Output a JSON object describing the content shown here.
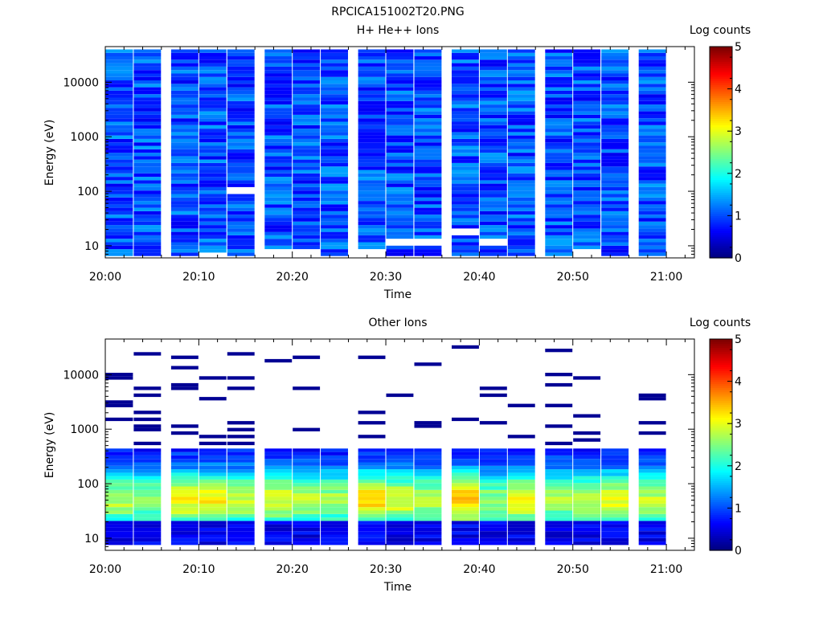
{
  "figure_title": "RPCICA151002T20.PNG",
  "chart_data": [
    {
      "type": "heatmap",
      "title": "H+ He++ Ions",
      "xlabel": "Time",
      "ylabel": "Energy (eV)",
      "x_ticks": [
        "20:00",
        "20:10",
        "20:20",
        "20:30",
        "20:40",
        "20:50",
        "21:00"
      ],
      "x_range": [
        "20:00",
        "21:03"
      ],
      "y_scale": "log",
      "y_ticks": [
        10,
        100,
        1000,
        10000
      ],
      "y_tick_labels": [
        "10",
        "100",
        "1000",
        "10000"
      ],
      "y_range": [
        6,
        45000
      ],
      "z_label": "Log counts",
      "z_ticks": [
        "0",
        "1",
        "2",
        "3",
        "4",
        "5"
      ],
      "z_range": [
        0,
        5
      ],
      "colorscale": "rainbow (dark blue to dark red)",
      "time_bins": [
        "20:00",
        "20:03",
        "20:07",
        "20:10",
        "20:13",
        "20:17",
        "20:20",
        "20:23",
        "20:27",
        "20:30",
        "20:33",
        "20:37",
        "20:40",
        "20:43",
        "20:47",
        "20:50",
        "20:53",
        "20:57"
      ],
      "description_of_values": "mostly 0.5 to 1.5 log counts across all energies; isolated white (no data) cells",
      "typical_log_counts": 1.0,
      "empty_cells": [
        {
          "time": "20:10",
          "energy_eV": 7
        },
        {
          "time": "20:13",
          "energy_eV": 105
        },
        {
          "time": "20:17",
          "energy_eV": 8
        },
        {
          "time": "20:20",
          "energy_eV": 8
        },
        {
          "time": "20:27",
          "energy_eV": 8
        },
        {
          "time": "20:30",
          "energy_eV": 12
        },
        {
          "time": "20:33",
          "energy_eV": 12
        },
        {
          "time": "20:37",
          "energy_eV": 18
        },
        {
          "time": "20:40",
          "energy_eV": 12
        },
        {
          "time": "20:50",
          "energy_eV": 8
        }
      ]
    },
    {
      "type": "heatmap",
      "title": "Other Ions",
      "xlabel": "Time",
      "ylabel": "Energy (eV)",
      "x_ticks": [
        "20:00",
        "20:10",
        "20:20",
        "20:30",
        "20:40",
        "20:50",
        "21:00"
      ],
      "x_range": [
        "20:00",
        "21:03"
      ],
      "y_scale": "log",
      "y_ticks": [
        10,
        100,
        1000,
        10000
      ],
      "y_tick_labels": [
        "10",
        "100",
        "1000",
        "10000"
      ],
      "y_range": [
        6,
        45000
      ],
      "z_label": "Log counts",
      "z_ticks": [
        "0",
        "1",
        "2",
        "3",
        "4",
        "5"
      ],
      "z_range": [
        0,
        5
      ],
      "colorscale": "rainbow (dark blue to dark red)",
      "time_bins": [
        "20:00",
        "20:03",
        "20:07",
        "20:10",
        "20:13",
        "20:17",
        "20:20",
        "20:23",
        "20:27",
        "20:30",
        "20:33",
        "20:37",
        "20:40",
        "20:43",
        "20:47",
        "20:50",
        "20:53",
        "20:57"
      ],
      "description_of_values": "broad band 20 to 400 eV peaking near 40 to 60 eV (log counts up to about 3.5), sparse single-count lines above 500 eV",
      "peak_log_counts_per_bin": [
        2.8,
        2.6,
        3.1,
        3.2,
        2.9,
        3.0,
        2.8,
        2.7,
        3.3,
        3.0,
        2.8,
        3.4,
        2.6,
        3.1,
        2.7,
        2.9,
        3.0,
        2.8
      ],
      "peak_energy_eV": 50,
      "band_energy_range_eV": [
        20,
        450
      ]
    }
  ]
}
